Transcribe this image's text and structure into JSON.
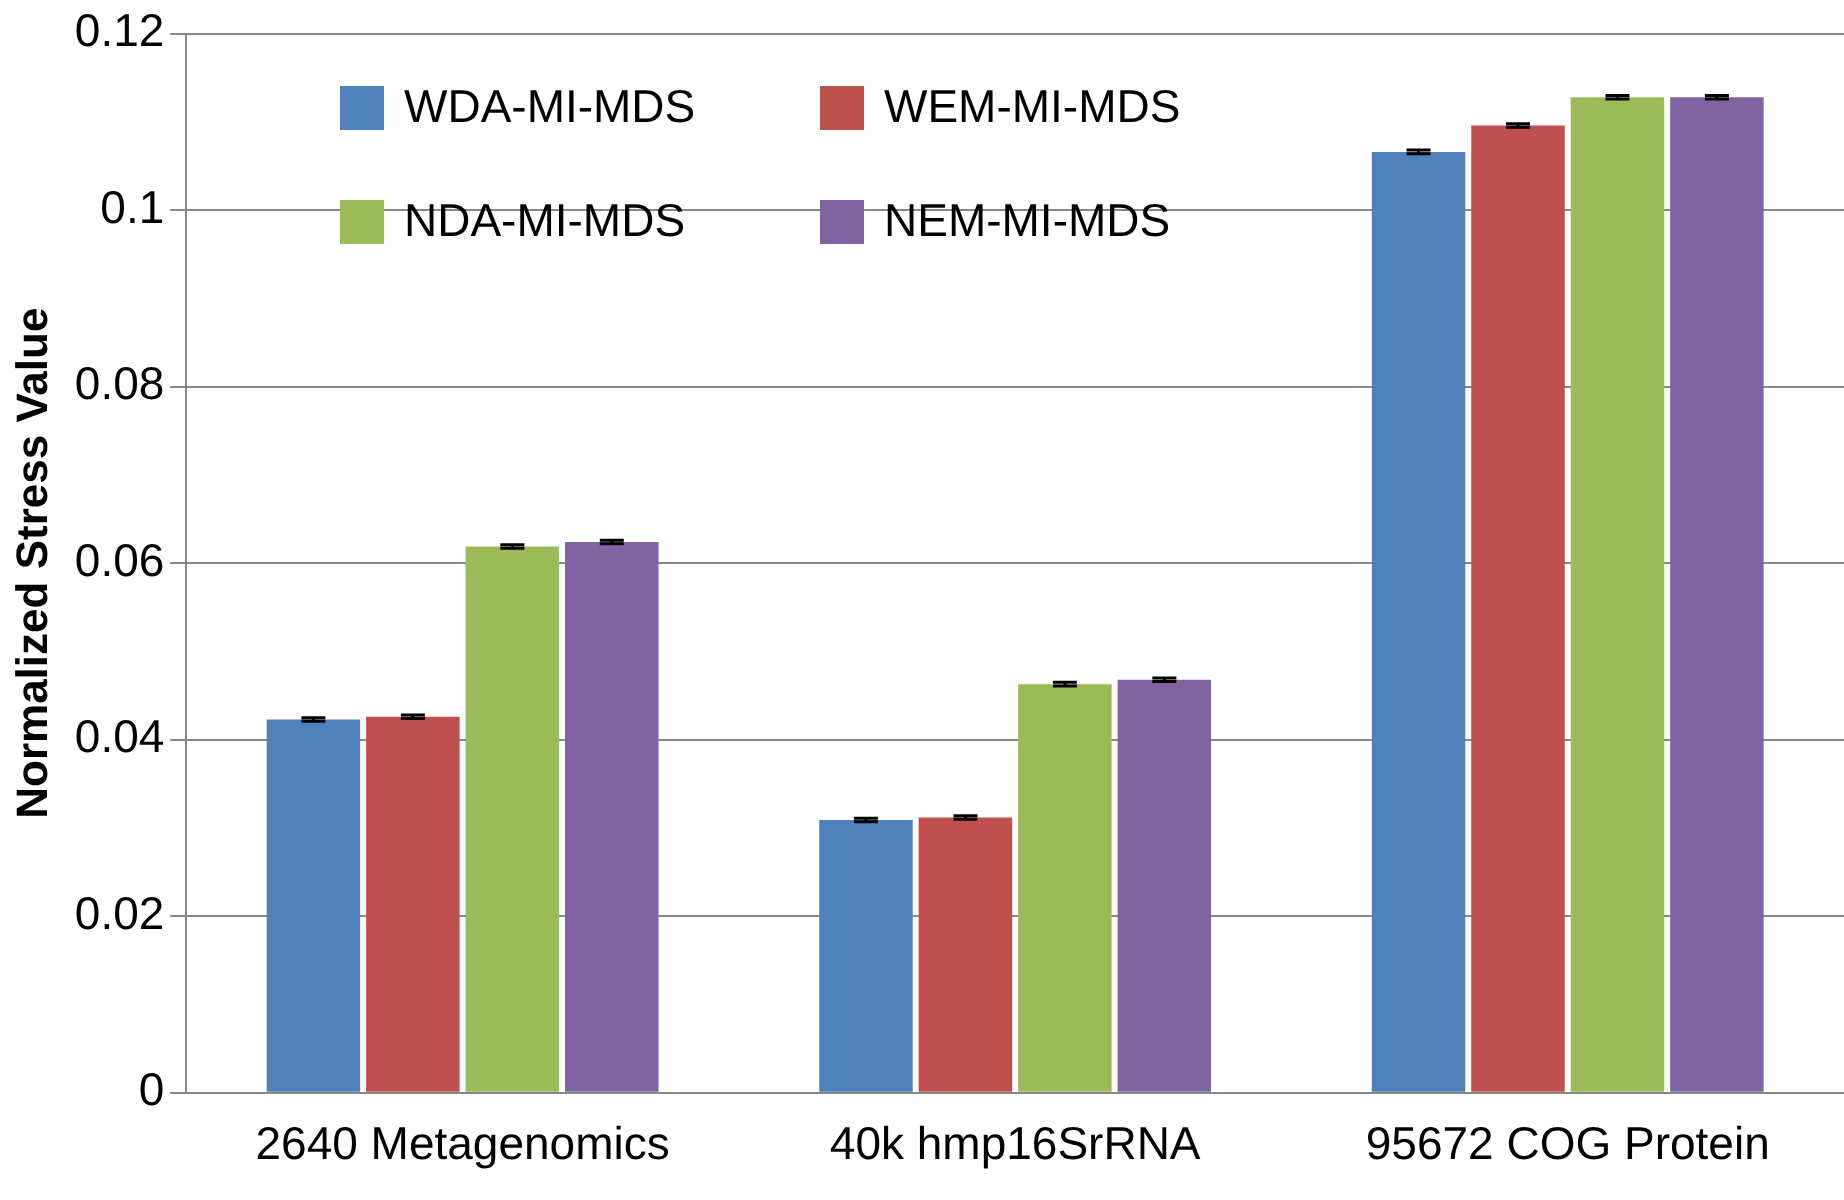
{
  "chart_data": {
    "type": "bar",
    "ylabel": "Normalized Stress Value",
    "categories": [
      "2640 Metagenomics",
      "40k hmp16SrRNA",
      "95672 COG Protein"
    ],
    "series": [
      {
        "name": "WDA-MI-MDS",
        "color": "#4f81bd",
        "values": [
          0.0423,
          0.0309,
          0.1066
        ],
        "errors": [
          0.0002,
          0.0002,
          0.0002
        ]
      },
      {
        "name": "WEM-MI-MDS",
        "color": "#c0504d",
        "values": [
          0.0426,
          0.0312,
          0.1096
        ],
        "errors": [
          0.0002,
          0.0002,
          0.0002
        ]
      },
      {
        "name": "NDA-MI-MDS",
        "color": "#9bbb59",
        "values": [
          0.0619,
          0.0463,
          0.1128
        ],
        "errors": [
          0.0002,
          0.0002,
          0.0002
        ]
      },
      {
        "name": "NEM-MI-MDS",
        "color": "#8064a2",
        "values": [
          0.0624,
          0.0468,
          0.1128
        ],
        "errors": [
          0.0002,
          0.0002,
          0.0002
        ]
      }
    ],
    "ylim": [
      0,
      0.12
    ],
    "yticks": [
      0,
      0.02,
      0.04,
      0.06,
      0.08,
      0.1,
      0.12
    ],
    "grid": "y",
    "legend": "top left"
  }
}
